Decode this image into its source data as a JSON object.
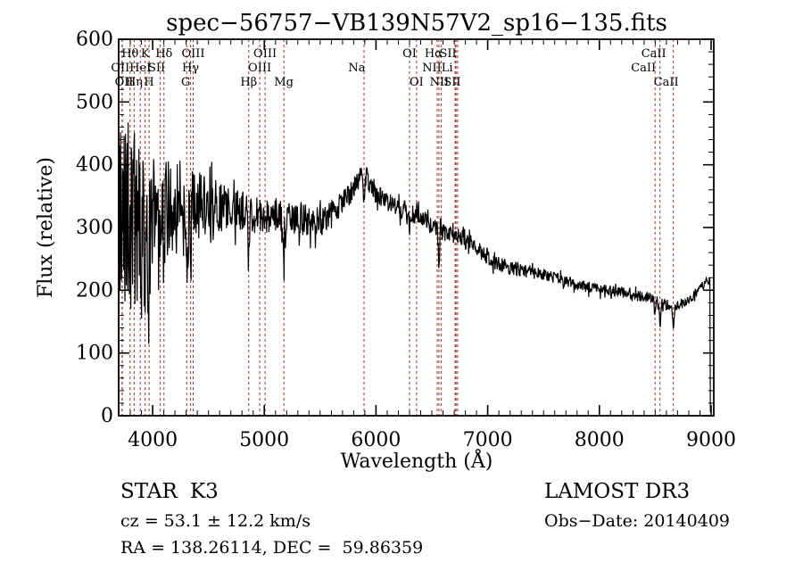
{
  "title": "spec−56757−VB139N57V2_sp16−135.fits",
  "colors": {
    "background": "#ffffff",
    "spectrum": "#000000",
    "line_marker": "#993333",
    "text": "#000000"
  },
  "annotations": {
    "object_type": "STAR",
    "subclass": "K3",
    "cz_line": "cz = 53.1 ± 12.2 km/s",
    "radec_line": "RA = 138.26114, DEC =  59.86359",
    "survey": "LAMOST DR3",
    "obs_date": "Obs−Date: 20140409"
  },
  "chart_data": {
    "type": "line",
    "title": "spec−56757−VB139N57V2_sp16−135.fits",
    "xlabel": "Wavelength (Å)",
    "ylabel": "Flux (relative)",
    "xlim": [
      3696,
      9024
    ],
    "ylim": [
      0,
      600
    ],
    "x_ticks": [
      4000,
      5000,
      6000,
      7000,
      8000,
      9000
    ],
    "y_ticks": [
      0,
      100,
      200,
      300,
      400,
      500,
      600
    ],
    "x_minor_step": 100,
    "y_minor_step": 20,
    "grid": false,
    "legend": "none",
    "series_name": "spectrum",
    "continuum_points": [
      [
        3697,
        60
      ],
      [
        3700,
        280
      ],
      [
        3720,
        300
      ],
      [
        3750,
        310
      ],
      [
        3800,
        320
      ],
      [
        3850,
        300
      ],
      [
        3900,
        285
      ],
      [
        3950,
        300
      ],
      [
        4000,
        315
      ],
      [
        4050,
        325
      ],
      [
        4100,
        330
      ],
      [
        4150,
        332
      ],
      [
        4200,
        332
      ],
      [
        4250,
        328
      ],
      [
        4300,
        322
      ],
      [
        4350,
        330
      ],
      [
        4400,
        336
      ],
      [
        4450,
        336
      ],
      [
        4500,
        335
      ],
      [
        4600,
        333
      ],
      [
        4700,
        330
      ],
      [
        4800,
        324
      ],
      [
        4900,
        318
      ],
      [
        5000,
        320
      ],
      [
        5100,
        318
      ],
      [
        5200,
        312
      ],
      [
        5300,
        315
      ],
      [
        5400,
        312
      ],
      [
        5500,
        310
      ],
      [
        5600,
        320
      ],
      [
        5700,
        340
      ],
      [
        5800,
        362
      ],
      [
        5860,
        378
      ],
      [
        5890,
        383
      ],
      [
        5920,
        378
      ],
      [
        6000,
        352
      ],
      [
        6100,
        340
      ],
      [
        6200,
        332
      ],
      [
        6300,
        324
      ],
      [
        6400,
        316
      ],
      [
        6500,
        302
      ],
      [
        6600,
        292
      ],
      [
        6700,
        288
      ],
      [
        6800,
        282
      ],
      [
        6900,
        268
      ],
      [
        7000,
        250
      ],
      [
        7100,
        241
      ],
      [
        7200,
        236
      ],
      [
        7300,
        232
      ],
      [
        7430,
        228
      ],
      [
        7600,
        219
      ],
      [
        7800,
        209
      ],
      [
        8000,
        202
      ],
      [
        8200,
        197
      ],
      [
        8400,
        189
      ],
      [
        8500,
        184
      ],
      [
        8600,
        177
      ],
      [
        8670,
        174
      ],
      [
        8750,
        180
      ],
      [
        8830,
        190
      ],
      [
        8900,
        202
      ],
      [
        8950,
        212
      ],
      [
        8990,
        218
      ]
    ],
    "noise_amplitude_points": [
      [
        3697,
        160
      ],
      [
        3750,
        165
      ],
      [
        3800,
        160
      ],
      [
        3900,
        140
      ],
      [
        4000,
        95
      ],
      [
        4100,
        82
      ],
      [
        4200,
        75
      ],
      [
        4300,
        68
      ],
      [
        4400,
        55
      ],
      [
        4500,
        45
      ],
      [
        4700,
        36
      ],
      [
        4900,
        32
      ],
      [
        5100,
        30
      ],
      [
        5300,
        27
      ],
      [
        5500,
        24
      ],
      [
        5700,
        20
      ],
      [
        5900,
        17
      ],
      [
        6100,
        16
      ],
      [
        6300,
        15
      ],
      [
        6500,
        14
      ],
      [
        6700,
        13
      ],
      [
        7000,
        12
      ],
      [
        7300,
        11
      ],
      [
        7600,
        10
      ],
      [
        8000,
        9
      ],
      [
        8400,
        9
      ],
      [
        8700,
        8
      ],
      [
        9000,
        8
      ]
    ],
    "absorption_features": [
      {
        "line": "CaII K",
        "center": 3933,
        "depth": 120,
        "width": 8
      },
      {
        "line": "CaII H",
        "center": 3968,
        "depth": 110,
        "width": 8
      },
      {
        "line": "Hδ",
        "center": 4102,
        "depth": 70,
        "width": 6
      },
      {
        "line": "G band",
        "center": 4305,
        "depth": 70,
        "width": 10
      },
      {
        "line": "Hγ",
        "center": 4340,
        "depth": 60,
        "width": 6
      },
      {
        "line": "Hβ",
        "center": 4861,
        "depth": 80,
        "width": 6
      },
      {
        "line": "Mg",
        "center": 5175,
        "depth": 55,
        "width": 10
      },
      {
        "line": "Na",
        "center": 5893,
        "depth": 45,
        "width": 6
      },
      {
        "line": "OI",
        "center": 6300,
        "depth": 25,
        "width": 5
      },
      {
        "line": "Hα",
        "center": 6563,
        "depth": 60,
        "width": 6
      },
      {
        "line": "CaII",
        "center": 8498,
        "depth": 25,
        "width": 6
      },
      {
        "line": "CaII",
        "center": 8542,
        "depth": 30,
        "width": 6
      },
      {
        "line": "CaII",
        "center": 8662,
        "depth": 30,
        "width": 6
      }
    ],
    "spectrum_end": {
      "wavelength": 8994,
      "drops_to_flux": 6
    },
    "line_markers": [
      {
        "label": "OII",
        "wavelength": 3726,
        "row": 2,
        "dx": -2
      },
      {
        "label": "OII",
        "wavelength": 3729,
        "row": 3,
        "dx": 2
      },
      {
        "label": "Hθ",
        "wavelength": 3798,
        "row": 1,
        "dx": 0
      },
      {
        "label": "Hη",
        "wavelength": 3835,
        "row": 3,
        "dx": 0
      },
      {
        "label": "HeI",
        "wavelength": 3889,
        "row": 2,
        "dx": 0
      },
      {
        "label": "K",
        "wavelength": 3933,
        "row": 1,
        "dx": 0
      },
      {
        "label": "H",
        "wavelength": 3968,
        "row": 3,
        "dx": 0
      },
      {
        "label": "SII",
        "wavelength": 4068,
        "row": 2,
        "dx": -4
      },
      {
        "label": "Hδ",
        "wavelength": 4102,
        "row": 1,
        "dx": 0
      },
      {
        "label": "G",
        "wavelength": 4305,
        "row": 3,
        "dx": -1
      },
      {
        "label": "Hγ",
        "wavelength": 4340,
        "row": 2,
        "dx": 0
      },
      {
        "label": "OIII",
        "wavelength": 4363,
        "row": 1,
        "dx": 0
      },
      {
        "label": "Hβ",
        "wavelength": 4861,
        "row": 3,
        "dx": 0
      },
      {
        "label": "OIII",
        "wavelength": 4959,
        "row": 2,
        "dx": 0
      },
      {
        "label": "OIII",
        "wavelength": 5007,
        "row": 1,
        "dx": 0
      },
      {
        "label": "Mg",
        "wavelength": 5175,
        "row": 3,
        "dx": 0
      },
      {
        "label": "Na",
        "wavelength": 5893,
        "row": 2,
        "dx": -8
      },
      {
        "label": "OI",
        "wavelength": 6300,
        "row": 1,
        "dx": 0
      },
      {
        "label": "OI",
        "wavelength": 6363,
        "row": 3,
        "dx": 0
      },
      {
        "label": "NII",
        "wavelength": 6548,
        "row": 2,
        "dx": -6
      },
      {
        "label": "Hα",
        "wavelength": 6563,
        "row": 1,
        "dx": -6
      },
      {
        "label": "NII",
        "wavelength": 6583,
        "row": 3,
        "dx": -2
      },
      {
        "label": "Li",
        "wavelength": 6708,
        "row": 2,
        "dx": -9
      },
      {
        "label": "SII",
        "wavelength": 6716,
        "row": 1,
        "dx": -9
      },
      {
        "label": "SII",
        "wavelength": 6731,
        "row": 3,
        "dx": -6
      },
      {
        "label": "CaII",
        "wavelength": 8498,
        "row": 2,
        "dx": -13
      },
      {
        "label": "CaII",
        "wavelength": 8542,
        "row": 1,
        "dx": -7
      },
      {
        "label": "CaII",
        "wavelength": 8662,
        "row": 3,
        "dx": -8
      }
    ]
  }
}
